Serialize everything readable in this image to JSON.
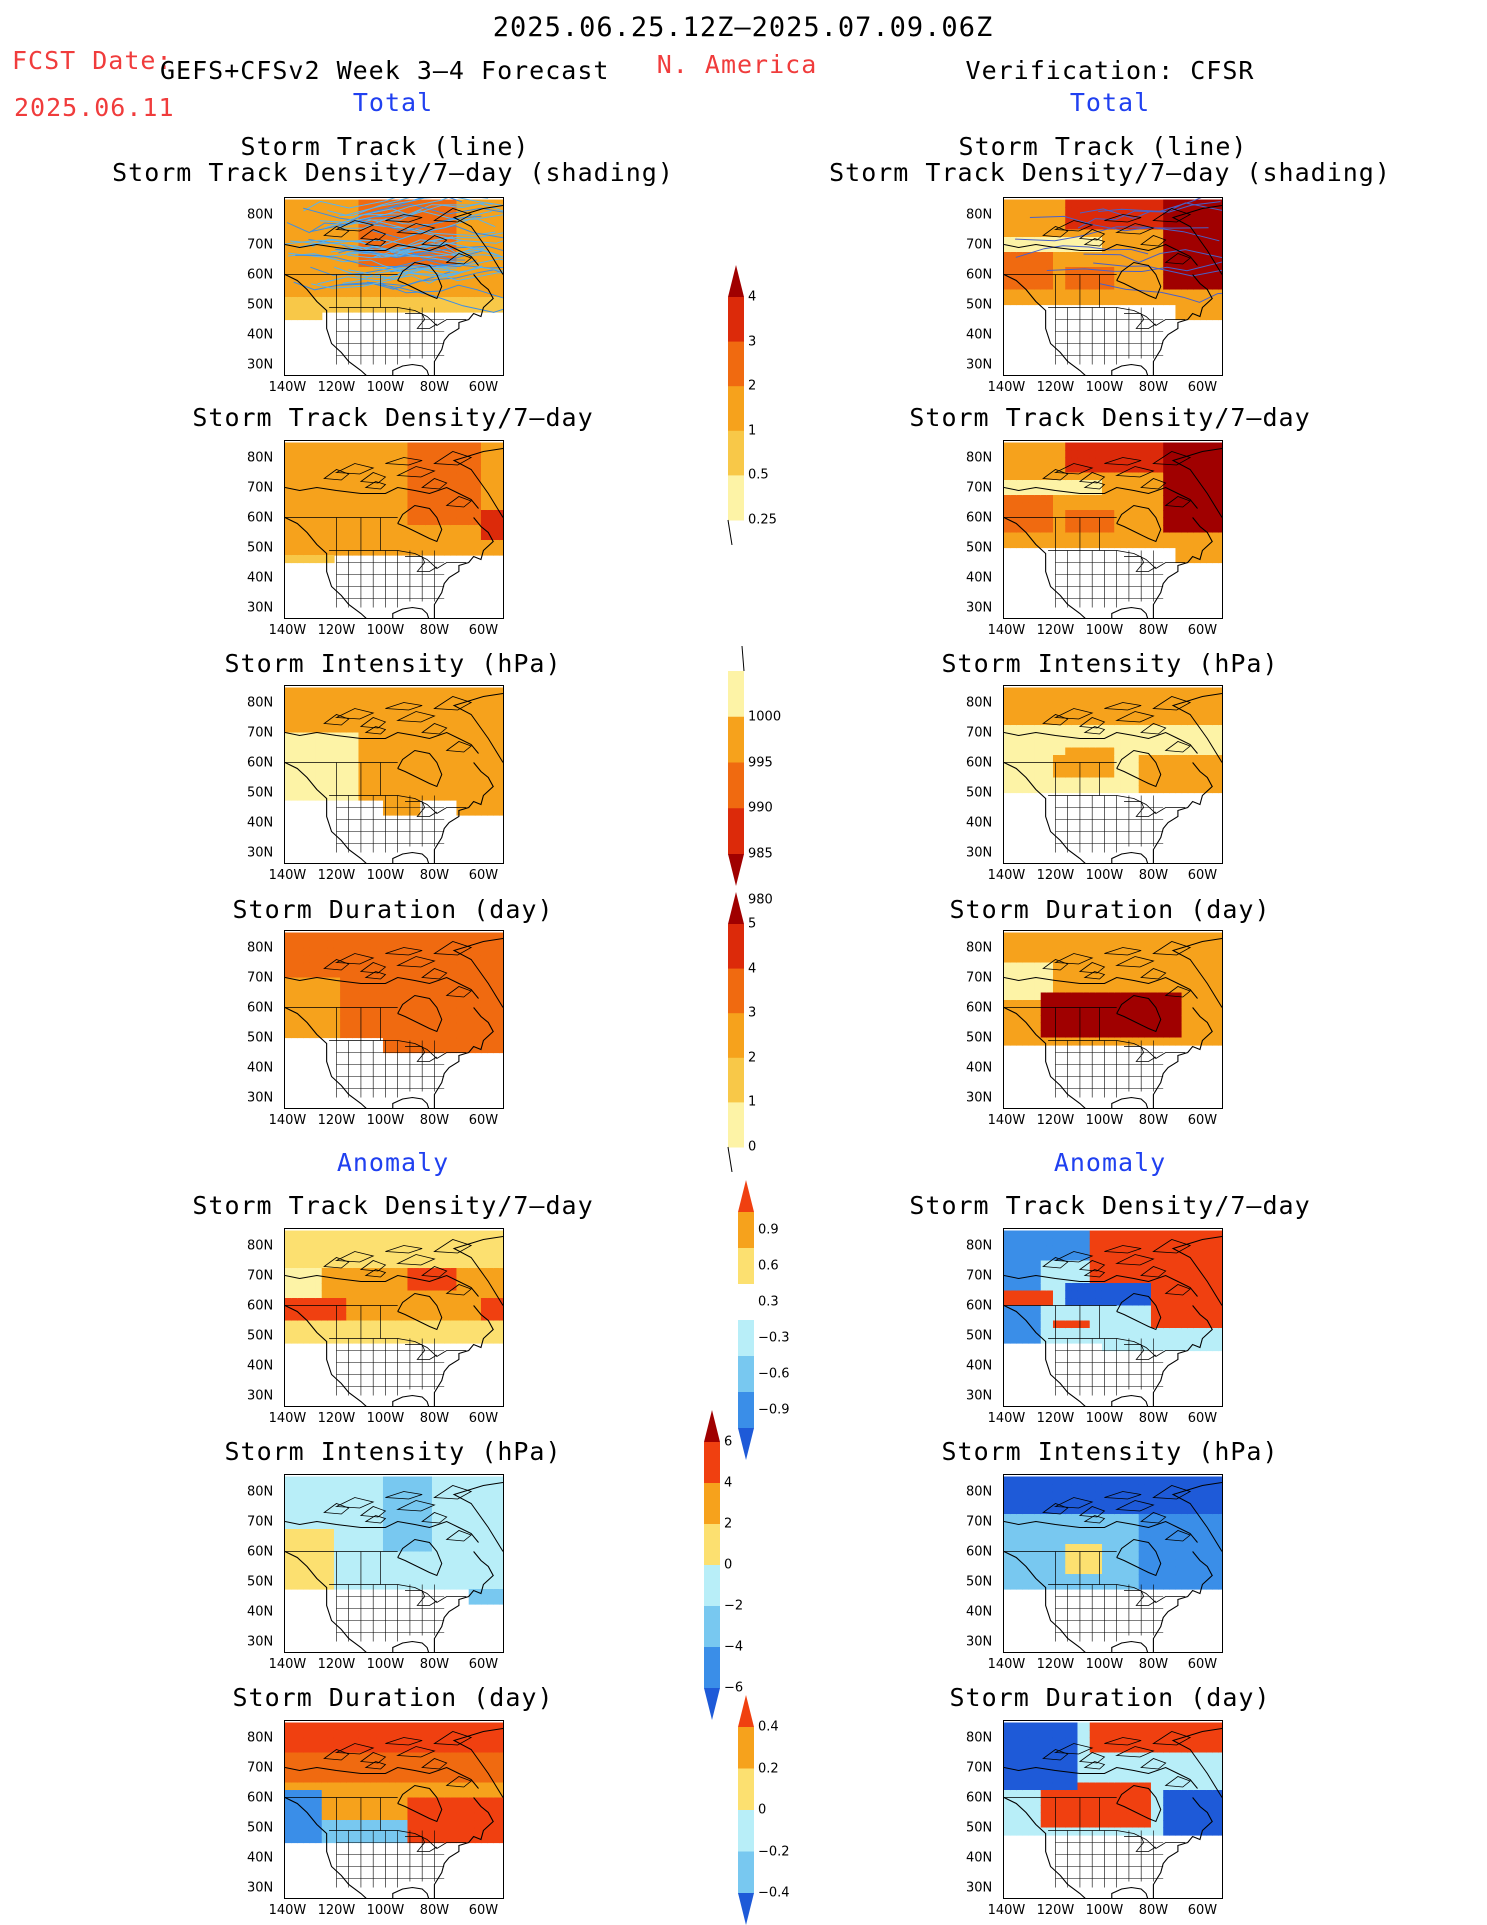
{
  "header": {
    "period": "2025.06.25.12Z–2025.07.09.06Z",
    "fcst_label": "FCST Date:",
    "fcst_date": "2025.06.11",
    "model": "GEFS+CFSv2 Week 3–4 Forecast",
    "region": "N. America",
    "verification": "Verification: CFSR",
    "left_total": "Total",
    "right_total": "Total",
    "left_anomaly": "Anomaly",
    "right_anomaly": "Anomaly"
  },
  "panel_titles": {
    "track_line": "Storm Track (line)",
    "track_shading": "Storm Track Density/7–day (shading)",
    "density": "Storm Track Density/7–day",
    "intensity": "Storm Intensity (hPa)",
    "duration": "Storm Duration (day)"
  },
  "axes": {
    "lat_ticks": [
      "80N",
      "70N",
      "60N",
      "50N",
      "40N",
      "30N"
    ],
    "lon_ticks": [
      "140W",
      "120W",
      "100W",
      "80W",
      "60W"
    ]
  },
  "colorbars": {
    "density_total": {
      "labels": [
        "4",
        "3",
        "2",
        "1",
        "0.5",
        "0.25"
      ],
      "colors": [
        "#a00000",
        "#dc2a0a",
        "#f06a10",
        "#f6a21c",
        "#f8c848",
        "#fdf3a6"
      ]
    },
    "intensity_total": {
      "labels": [
        "1000",
        "995",
        "990",
        "985",
        "980"
      ],
      "colors": [
        "#fdf3a6",
        "#f6a21c",
        "#f06a10",
        "#dc2a0a",
        "#a00000"
      ]
    },
    "duration_total": {
      "labels": [
        "5",
        "4",
        "3",
        "2",
        "1",
        "0"
      ],
      "colors": [
        "#a00000",
        "#dc2a0a",
        "#f06a10",
        "#f6a21c",
        "#f8c848",
        "#fdf3a6"
      ]
    },
    "density_anom": {
      "labels": [
        "0.9",
        "0.6",
        "0.3",
        "−0.3",
        "−0.6",
        "−0.9"
      ],
      "colors": [
        "#f04010",
        "#f6a21c",
        "#fce070",
        "#ffffff",
        "#b8eef8",
        "#78c8f0",
        "#3a8ee8",
        "#1e5ad8"
      ]
    },
    "intensity_anom": {
      "labels": [
        "6",
        "4",
        "2",
        "0",
        "−2",
        "−4",
        "−6"
      ],
      "colors": [
        "#a00000",
        "#f04010",
        "#f6a21c",
        "#fce070",
        "#b8eef8",
        "#78c8f0",
        "#3a8ee8",
        "#1e5ad8"
      ]
    },
    "duration_anom": {
      "labels": [
        "0.4",
        "0.2",
        "0",
        "−0.2",
        "−0.4"
      ],
      "colors": [
        "#f04010",
        "#f6a21c",
        "#fce070",
        "#b8eef8",
        "#78c8f0",
        "#1e5ad8"
      ]
    }
  }
}
